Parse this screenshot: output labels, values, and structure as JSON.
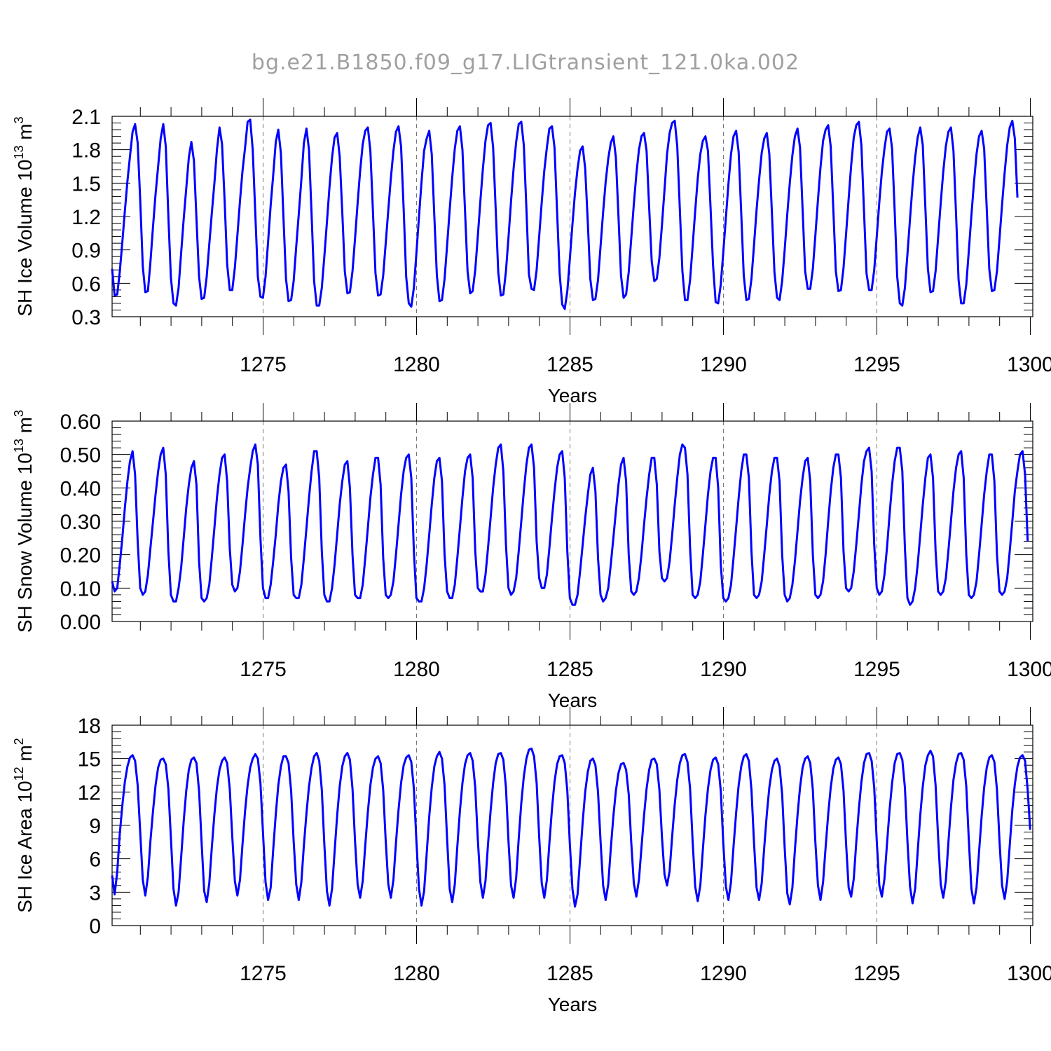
{
  "title": "bg.e21.B1850.f09_g17.LIGtransient_121.0ka.002",
  "colors": {
    "series": "#0000ff",
    "axes": "#000000",
    "title": "#a0a0a0",
    "refline": "#777777"
  },
  "chart_data": [
    {
      "type": "line",
      "ylabel": "SH Ice Volume 10",
      "ylabel_exp": "13",
      "ylabel_unit": " m",
      "ylabel_unit_exp": "3",
      "xlabel": "Years",
      "xlim": [
        1270.08,
        1300.08
      ],
      "ylim": [
        0.3,
        2.1
      ],
      "x_ticks": [
        "1275",
        "1280",
        "1285",
        "1290",
        "1295",
        "1300"
      ],
      "y_ticks": [
        "0.3",
        "0.6",
        "0.9",
        "1.2",
        "1.5",
        "1.8",
        "2.1"
      ],
      "reference_lines_x": [
        1275,
        1280,
        1285,
        1290,
        1295
      ],
      "x_start": 1270.08,
      "x_step": 0.0833333,
      "values": [
        0.73,
        0.49,
        0.5,
        0.7,
        0.97,
        1.25,
        1.52,
        1.74,
        1.96,
        2.03,
        1.86,
        1.35,
        0.75,
        0.52,
        0.53,
        0.79,
        1.11,
        1.4,
        1.65,
        1.9,
        2.03,
        1.83,
        1.2,
        0.65,
        0.42,
        0.4,
        0.56,
        0.87,
        1.18,
        1.45,
        1.73,
        1.87,
        1.7,
        1.18,
        0.66,
        0.46,
        0.47,
        0.66,
        0.95,
        1.23,
        1.5,
        1.8,
        2.0,
        1.85,
        1.34,
        0.77,
        0.54,
        0.54,
        0.74,
        1.03,
        1.34,
        1.61,
        1.82,
        2.05,
        2.07,
        1.8,
        1.22,
        0.66,
        0.48,
        0.47,
        0.66,
        0.97,
        1.3,
        1.57,
        1.87,
        1.98,
        1.77,
        1.2,
        0.64,
        0.44,
        0.45,
        0.62,
        0.93,
        1.22,
        1.53,
        1.86,
        1.99,
        1.8,
        1.22,
        0.62,
        0.4,
        0.4,
        0.56,
        0.84,
        1.15,
        1.46,
        1.73,
        1.91,
        1.95,
        1.74,
        1.24,
        0.71,
        0.51,
        0.52,
        0.71,
        1.0,
        1.32,
        1.61,
        1.85,
        1.97,
        2.0,
        1.79,
        1.24,
        0.69,
        0.49,
        0.5,
        0.67,
        0.96,
        1.26,
        1.54,
        1.79,
        1.96,
        2.01,
        1.83,
        1.27,
        0.66,
        0.42,
        0.39,
        0.56,
        0.87,
        1.2,
        1.51,
        1.79,
        1.9,
        1.97,
        1.76,
        1.2,
        0.67,
        0.44,
        0.45,
        0.64,
        0.94,
        1.26,
        1.55,
        1.81,
        1.97,
        2.01,
        1.8,
        1.25,
        0.71,
        0.51,
        0.53,
        0.72,
        1.02,
        1.34,
        1.63,
        1.88,
        2.02,
        2.04,
        1.82,
        1.26,
        0.7,
        0.49,
        0.5,
        0.71,
        1.01,
        1.34,
        1.63,
        1.87,
        2.03,
        2.05,
        1.84,
        1.27,
        0.68,
        0.55,
        0.54,
        0.72,
        1.02,
        1.33,
        1.61,
        1.82,
        1.99,
        2.01,
        1.82,
        1.24,
        0.69,
        0.41,
        0.37,
        0.53,
        0.82,
        1.13,
        1.41,
        1.63,
        1.79,
        1.83,
        1.63,
        1.15,
        0.64,
        0.45,
        0.46,
        0.63,
        0.93,
        1.24,
        1.51,
        1.72,
        1.86,
        1.92,
        1.73,
        1.2,
        0.67,
        0.47,
        0.5,
        0.7,
        1.0,
        1.31,
        1.58,
        1.8,
        1.92,
        1.95,
        1.79,
        1.28,
        0.8,
        0.62,
        0.64,
        0.83,
        1.12,
        1.44,
        1.76,
        1.95,
        2.04,
        2.06,
        1.83,
        1.26,
        0.71,
        0.45,
        0.45,
        0.63,
        0.93,
        1.25,
        1.54,
        1.76,
        1.88,
        1.92,
        1.79,
        1.28,
        0.76,
        0.43,
        0.42,
        0.59,
        0.88,
        1.19,
        1.49,
        1.76,
        1.92,
        1.97,
        1.78,
        1.23,
        0.67,
        0.45,
        0.46,
        0.64,
        0.94,
        1.26,
        1.53,
        1.77,
        1.9,
        1.95,
        1.76,
        1.23,
        0.7,
        0.47,
        0.45,
        0.62,
        0.9,
        1.22,
        1.5,
        1.75,
        1.92,
        1.99,
        1.82,
        1.26,
        0.71,
        0.55,
        0.55,
        0.73,
        1.03,
        1.35,
        1.64,
        1.88,
        1.98,
        2.02,
        1.83,
        1.27,
        0.71,
        0.53,
        0.54,
        0.74,
        1.04,
        1.36,
        1.66,
        1.91,
        2.02,
        2.05,
        1.84,
        1.25,
        0.69,
        0.54,
        0.54,
        0.72,
        1.02,
        1.33,
        1.6,
        1.81,
        1.96,
        1.99,
        1.81,
        1.25,
        0.66,
        0.42,
        0.4,
        0.56,
        0.86,
        1.18,
        1.48,
        1.73,
        1.91,
        2.0,
        1.84,
        1.28,
        0.73,
        0.52,
        0.53,
        0.71,
        1.01,
        1.32,
        1.6,
        1.83,
        1.96,
        2.0,
        1.79,
        1.22,
        0.63,
        0.42,
        0.42,
        0.59,
        0.89,
        1.21,
        1.5,
        1.76,
        1.92,
        1.97,
        1.81,
        1.27,
        0.73,
        0.53,
        0.54,
        0.71,
        1.0,
        1.31,
        1.59,
        1.84,
        2.0,
        2.06,
        1.9,
        1.37
      ]
    },
    {
      "type": "line",
      "ylabel": "SH Snow Volume 10",
      "ylabel_exp": "13",
      "ylabel_unit": " m",
      "ylabel_unit_exp": "3",
      "xlabel": "Years",
      "xlim": [
        1270.08,
        1300.08
      ],
      "ylim": [
        0.0,
        0.6
      ],
      "x_ticks": [
        "1275",
        "1280",
        "1285",
        "1290",
        "1295",
        "1300"
      ],
      "y_ticks": [
        "0.00",
        "0.10",
        "0.20",
        "0.30",
        "0.40",
        "0.50",
        "0.60"
      ],
      "reference_lines_x": [
        1275,
        1280,
        1285,
        1290,
        1295
      ],
      "x_start": 1270.08,
      "x_step": 0.0833333,
      "values": [
        0.12,
        0.09,
        0.1,
        0.17,
        0.25,
        0.34,
        0.42,
        0.48,
        0.51,
        0.44,
        0.24,
        0.1,
        0.08,
        0.09,
        0.14,
        0.22,
        0.3,
        0.38,
        0.45,
        0.5,
        0.52,
        0.44,
        0.21,
        0.08,
        0.06,
        0.06,
        0.1,
        0.16,
        0.25,
        0.34,
        0.41,
        0.46,
        0.48,
        0.41,
        0.18,
        0.07,
        0.06,
        0.07,
        0.11,
        0.19,
        0.28,
        0.37,
        0.44,
        0.49,
        0.5,
        0.42,
        0.22,
        0.11,
        0.09,
        0.1,
        0.15,
        0.23,
        0.32,
        0.4,
        0.46,
        0.51,
        0.53,
        0.47,
        0.25,
        0.1,
        0.07,
        0.07,
        0.11,
        0.18,
        0.26,
        0.35,
        0.42,
        0.46,
        0.47,
        0.39,
        0.19,
        0.08,
        0.07,
        0.07,
        0.11,
        0.19,
        0.28,
        0.37,
        0.45,
        0.51,
        0.51,
        0.43,
        0.21,
        0.08,
        0.06,
        0.06,
        0.1,
        0.17,
        0.26,
        0.35,
        0.42,
        0.47,
        0.48,
        0.4,
        0.2,
        0.08,
        0.07,
        0.07,
        0.11,
        0.19,
        0.28,
        0.37,
        0.44,
        0.49,
        0.49,
        0.41,
        0.19,
        0.08,
        0.07,
        0.08,
        0.12,
        0.2,
        0.29,
        0.38,
        0.45,
        0.49,
        0.5,
        0.43,
        0.21,
        0.07,
        0.06,
        0.06,
        0.1,
        0.17,
        0.26,
        0.35,
        0.43,
        0.48,
        0.49,
        0.42,
        0.2,
        0.09,
        0.07,
        0.07,
        0.11,
        0.19,
        0.28,
        0.37,
        0.45,
        0.49,
        0.5,
        0.43,
        0.21,
        0.1,
        0.09,
        0.09,
        0.14,
        0.22,
        0.31,
        0.4,
        0.47,
        0.52,
        0.53,
        0.45,
        0.23,
        0.1,
        0.08,
        0.09,
        0.13,
        0.21,
        0.3,
        0.39,
        0.47,
        0.52,
        0.53,
        0.46,
        0.24,
        0.13,
        0.1,
        0.1,
        0.14,
        0.22,
        0.31,
        0.39,
        0.46,
        0.5,
        0.51,
        0.43,
        0.21,
        0.07,
        0.05,
        0.05,
        0.08,
        0.15,
        0.23,
        0.31,
        0.38,
        0.44,
        0.46,
        0.39,
        0.19,
        0.08,
        0.06,
        0.07,
        0.1,
        0.17,
        0.25,
        0.33,
        0.41,
        0.47,
        0.49,
        0.42,
        0.2,
        0.09,
        0.08,
        0.09,
        0.13,
        0.2,
        0.29,
        0.37,
        0.44,
        0.49,
        0.49,
        0.41,
        0.21,
        0.13,
        0.12,
        0.13,
        0.18,
        0.26,
        0.35,
        0.43,
        0.5,
        0.53,
        0.52,
        0.44,
        0.22,
        0.08,
        0.07,
        0.08,
        0.12,
        0.2,
        0.29,
        0.38,
        0.45,
        0.49,
        0.49,
        0.4,
        0.17,
        0.07,
        0.06,
        0.07,
        0.11,
        0.19,
        0.28,
        0.37,
        0.45,
        0.5,
        0.5,
        0.43,
        0.21,
        0.08,
        0.07,
        0.08,
        0.12,
        0.2,
        0.29,
        0.38,
        0.45,
        0.49,
        0.49,
        0.42,
        0.2,
        0.08,
        0.06,
        0.07,
        0.11,
        0.18,
        0.27,
        0.36,
        0.43,
        0.48,
        0.49,
        0.42,
        0.2,
        0.08,
        0.07,
        0.08,
        0.12,
        0.2,
        0.3,
        0.39,
        0.46,
        0.5,
        0.5,
        0.43,
        0.21,
        0.1,
        0.09,
        0.1,
        0.15,
        0.23,
        0.32,
        0.41,
        0.48,
        0.51,
        0.52,
        0.45,
        0.23,
        0.1,
        0.08,
        0.09,
        0.14,
        0.22,
        0.32,
        0.41,
        0.48,
        0.52,
        0.52,
        0.45,
        0.22,
        0.07,
        0.05,
        0.06,
        0.1,
        0.17,
        0.26,
        0.35,
        0.43,
        0.49,
        0.5,
        0.43,
        0.21,
        0.09,
        0.08,
        0.09,
        0.13,
        0.21,
        0.3,
        0.39,
        0.46,
        0.5,
        0.51,
        0.43,
        0.2,
        0.08,
        0.07,
        0.08,
        0.12,
        0.2,
        0.29,
        0.38,
        0.45,
        0.5,
        0.5,
        0.42,
        0.2,
        0.09,
        0.08,
        0.09,
        0.13,
        0.21,
        0.3,
        0.39,
        0.45,
        0.5,
        0.51,
        0.44,
        0.24
      ]
    },
    {
      "type": "line",
      "ylabel": "SH Ice Area 10",
      "ylabel_exp": "12",
      "ylabel_unit": " m",
      "ylabel_unit_exp": "2",
      "xlabel": "Years",
      "xlim": [
        1270.08,
        1300.08
      ],
      "ylim": [
        0,
        18
      ],
      "x_ticks": [
        "1275",
        "1280",
        "1285",
        "1290",
        "1295",
        "1300"
      ],
      "y_ticks": [
        "0",
        "3",
        "6",
        "9",
        "12",
        "15",
        "18"
      ],
      "reference_lines_x": [
        1275,
        1280,
        1285,
        1290,
        1295
      ],
      "x_start": 1270.08,
      "x_step": 0.0833333,
      "values": [
        4.5,
        2.8,
        4.8,
        8.2,
        10.8,
        12.9,
        14.3,
        15.1,
        15.3,
        14.8,
        12.6,
        8.4,
        4.1,
        2.7,
        4.4,
        7.6,
        10.3,
        12.6,
        14.2,
        14.9,
        15.0,
        14.5,
        12.3,
        7.9,
        3.3,
        1.8,
        3.0,
        6.1,
        9.4,
        12.1,
        14.0,
        14.9,
        15.1,
        14.6,
        12.1,
        7.5,
        3.1,
        2.1,
        3.8,
        7.0,
        10.0,
        12.4,
        14.0,
        14.8,
        15.1,
        14.6,
        12.3,
        8.0,
        4.0,
        2.7,
        4.1,
        7.3,
        10.3,
        12.6,
        14.2,
        15.0,
        15.4,
        15.0,
        12.8,
        8.4,
        3.9,
        2.3,
        3.4,
        6.8,
        10.0,
        12.6,
        14.3,
        15.2,
        15.2,
        14.6,
        12.1,
        7.6,
        3.7,
        2.3,
        3.9,
        7.2,
        10.1,
        12.5,
        14.2,
        15.2,
        15.5,
        14.8,
        12.2,
        7.3,
        3.1,
        1.8,
        3.3,
        6.6,
        9.9,
        12.5,
        14.3,
        15.2,
        15.5,
        14.9,
        12.3,
        7.6,
        3.7,
        2.5,
        4.0,
        7.2,
        10.2,
        12.6,
        14.2,
        15.0,
        15.2,
        14.6,
        12.2,
        7.6,
        3.7,
        2.5,
        4.1,
        7.4,
        10.4,
        12.8,
        14.4,
        15.1,
        15.3,
        14.7,
        12.3,
        7.6,
        3.3,
        1.8,
        3.1,
        6.4,
        9.8,
        12.4,
        14.3,
        15.2,
        15.6,
        15.0,
        12.6,
        7.8,
        3.3,
        2.1,
        3.7,
        7.1,
        10.3,
        12.8,
        14.5,
        15.3,
        15.5,
        14.8,
        12.4,
        7.8,
        3.9,
        2.5,
        4.0,
        7.3,
        10.3,
        12.8,
        14.6,
        15.4,
        15.5,
        14.9,
        12.4,
        7.6,
        3.6,
        2.5,
        4.3,
        7.8,
        11.0,
        13.4,
        15.0,
        15.8,
        15.9,
        15.2,
        12.8,
        8.0,
        3.8,
        2.5,
        4.1,
        7.4,
        10.5,
        12.9,
        14.5,
        15.2,
        15.3,
        14.6,
        12.1,
        7.3,
        3.3,
        1.7,
        2.8,
        6.0,
        9.3,
        12.0,
        13.8,
        14.8,
        15.0,
        14.4,
        12.0,
        7.6,
        3.6,
        2.3,
        3.7,
        6.9,
        9.8,
        12.1,
        13.7,
        14.5,
        14.6,
        14.0,
        11.8,
        7.5,
        3.8,
        2.6,
        4.1,
        7.0,
        9.9,
        12.3,
        14.0,
        14.9,
        15.0,
        14.5,
        12.2,
        8.0,
        4.6,
        3.6,
        4.9,
        8.0,
        10.9,
        13.1,
        14.6,
        15.3,
        15.4,
        14.7,
        12.3,
        7.6,
        3.5,
        2.2,
        3.6,
        6.8,
        9.9,
        12.3,
        14.0,
        14.9,
        15.1,
        14.5,
        12.1,
        7.4,
        3.5,
        2.3,
        3.9,
        7.1,
        10.1,
        12.6,
        14.3,
        15.2,
        15.4,
        14.8,
        12.2,
        7.5,
        3.4,
        2.3,
        3.8,
        7.0,
        10.0,
        12.4,
        14.0,
        14.8,
        15.0,
        14.3,
        11.8,
        7.0,
        2.9,
        1.9,
        3.4,
        6.8,
        9.9,
        12.4,
        14.2,
        15.0,
        15.2,
        14.6,
        12.2,
        7.5,
        3.6,
        2.3,
        3.9,
        7.0,
        10.0,
        12.4,
        14.1,
        14.9,
        15.1,
        14.5,
        12.1,
        7.4,
        3.4,
        2.6,
        4.2,
        7.5,
        10.5,
        12.9,
        14.6,
        15.4,
        15.5,
        14.8,
        12.4,
        7.6,
        3.6,
        2.6,
        4.2,
        7.3,
        10.4,
        12.8,
        14.6,
        15.4,
        15.5,
        14.9,
        12.4,
        7.6,
        3.5,
        2.0,
        3.3,
        6.6,
        9.9,
        12.5,
        14.4,
        15.3,
        15.7,
        15.2,
        12.6,
        7.9,
        3.7,
        2.5,
        4.0,
        7.4,
        10.6,
        13.1,
        14.6,
        15.4,
        15.5,
        14.9,
        12.5,
        7.7,
        3.3,
        2.0,
        3.4,
        6.6,
        9.8,
        12.4,
        14.2,
        15.1,
        15.3,
        14.7,
        12.2,
        7.6,
        3.6,
        2.4,
        4.0,
        7.2,
        10.4,
        12.7,
        14.3,
        15.1,
        15.3,
        14.8,
        12.2,
        8.6
      ]
    }
  ]
}
